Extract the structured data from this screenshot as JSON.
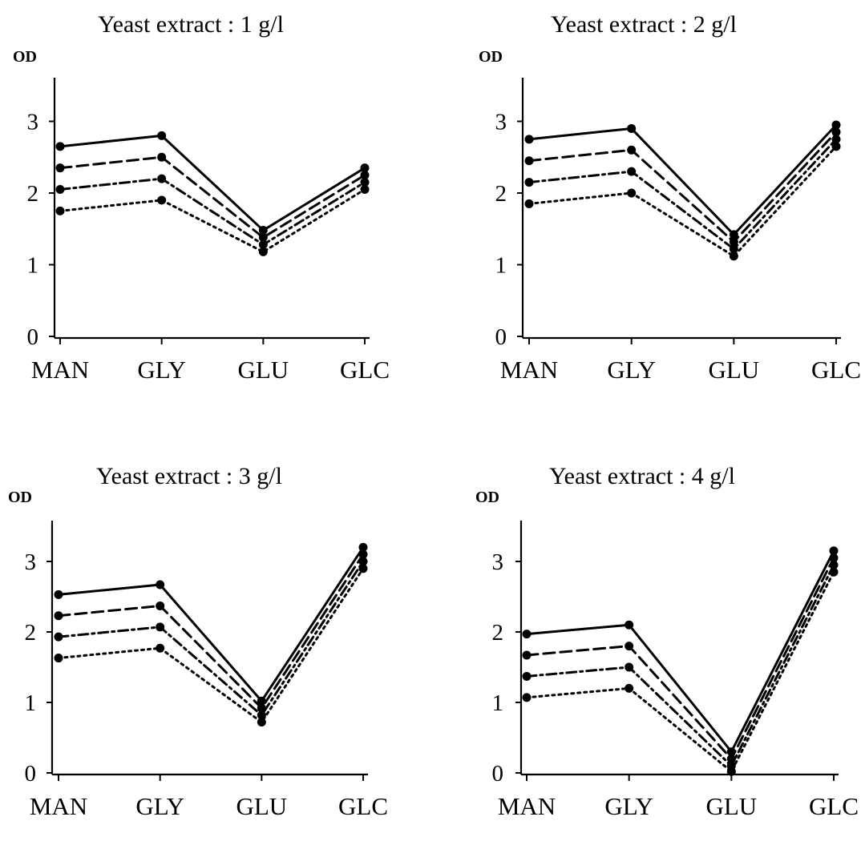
{
  "chart_data": [
    {
      "type": "line",
      "title": "Yeast extract : 1 g/l",
      "ylabel": "OD",
      "xlabel": "",
      "categories": [
        "MAN",
        "GLY",
        "GLU",
        "GLC"
      ],
      "y_ticks": [
        "0",
        "1",
        "2",
        "3"
      ],
      "ylim": [
        0,
        3.5
      ],
      "grid": false,
      "series": [
        {
          "style": "solid",
          "values": [
            2.65,
            2.8,
            1.48,
            2.35
          ]
        },
        {
          "style": "dashed",
          "values": [
            2.35,
            2.5,
            1.38,
            2.25
          ]
        },
        {
          "style": "dashdot",
          "values": [
            2.05,
            2.2,
            1.28,
            2.15
          ]
        },
        {
          "style": "dotted",
          "values": [
            1.75,
            1.9,
            1.18,
            2.05
          ]
        }
      ]
    },
    {
      "type": "line",
      "title": "Yeast extract : 2 g/l",
      "ylabel": "OD",
      "xlabel": "",
      "categories": [
        "MAN",
        "GLY",
        "GLU",
        "GLC"
      ],
      "y_ticks": [
        "0",
        "1",
        "2",
        "3"
      ],
      "ylim": [
        0,
        3.5
      ],
      "grid": false,
      "series": [
        {
          "style": "solid",
          "values": [
            2.75,
            2.9,
            1.42,
            2.95
          ]
        },
        {
          "style": "dashed",
          "values": [
            2.45,
            2.6,
            1.32,
            2.85
          ]
        },
        {
          "style": "dashdot",
          "values": [
            2.15,
            2.3,
            1.22,
            2.75
          ]
        },
        {
          "style": "dotted",
          "values": [
            1.85,
            2.0,
            1.12,
            2.65
          ]
        }
      ]
    },
    {
      "type": "line",
      "title": "Yeast extract : 3 g/l",
      "ylabel": "OD",
      "xlabel": "",
      "categories": [
        "MAN",
        "GLY",
        "GLU",
        "GLC"
      ],
      "y_ticks": [
        "0",
        "1",
        "2",
        "3"
      ],
      "ylim": [
        0,
        3.5
      ],
      "grid": false,
      "series": [
        {
          "style": "solid",
          "values": [
            2.53,
            2.67,
            1.02,
            3.2
          ]
        },
        {
          "style": "dashed",
          "values": [
            2.23,
            2.37,
            0.92,
            3.1
          ]
        },
        {
          "style": "dashdot",
          "values": [
            1.93,
            2.07,
            0.82,
            3.0
          ]
        },
        {
          "style": "dotted",
          "values": [
            1.63,
            1.77,
            0.72,
            2.9
          ]
        }
      ]
    },
    {
      "type": "line",
      "title": "Yeast extract : 4 g/l",
      "ylabel": "OD",
      "xlabel": "",
      "categories": [
        "MAN",
        "GLY",
        "GLU",
        "GLC"
      ],
      "y_ticks": [
        "0",
        "1",
        "2",
        "3"
      ],
      "ylim": [
        0,
        3.5
      ],
      "grid": false,
      "series": [
        {
          "style": "solid",
          "values": [
            1.97,
            2.1,
            0.3,
            3.15
          ]
        },
        {
          "style": "dashed",
          "values": [
            1.67,
            1.8,
            0.2,
            3.05
          ]
        },
        {
          "style": "dashdot",
          "values": [
            1.37,
            1.5,
            0.1,
            2.95
          ]
        },
        {
          "style": "dotted",
          "values": [
            1.07,
            1.2,
            0.02,
            2.85
          ]
        }
      ]
    }
  ]
}
